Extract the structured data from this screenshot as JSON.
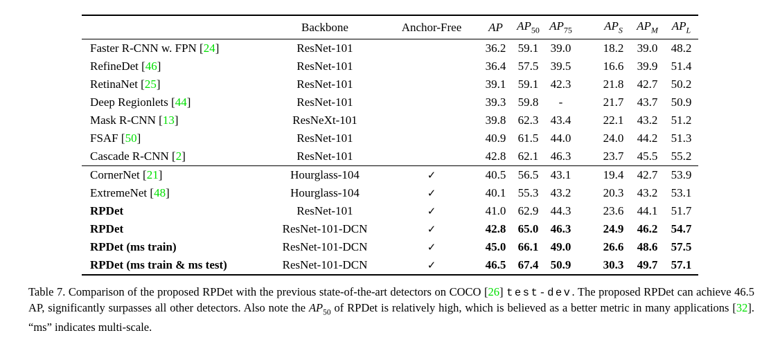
{
  "page": {
    "cite_color": "#00e000",
    "text_color": "#000000",
    "background": "#ffffff"
  },
  "table": {
    "check_glyph": "✓",
    "header": {
      "method": "",
      "backbone": "Backbone",
      "anchor_free": "Anchor-Free",
      "metrics": [
        {
          "name": "AP",
          "sub": ""
        },
        {
          "name": "AP",
          "sub": "50"
        },
        {
          "name": "AP",
          "sub": "75"
        },
        {
          "name": "AP",
          "sub": "S"
        },
        {
          "name": "AP",
          "sub": "M"
        },
        {
          "name": "AP",
          "sub": "L"
        }
      ]
    },
    "groups": [
      {
        "rows": [
          {
            "method": "Faster R-CNN w. FPN",
            "cite": "24",
            "backbone": "ResNet-101",
            "anchor_free": false,
            "bold": false,
            "bold_values": false,
            "values": [
              "36.2",
              "59.1",
              "39.0",
              "18.2",
              "39.0",
              "48.2"
            ]
          },
          {
            "method": "RefineDet",
            "cite": "46",
            "backbone": "ResNet-101",
            "anchor_free": false,
            "bold": false,
            "bold_values": false,
            "values": [
              "36.4",
              "57.5",
              "39.5",
              "16.6",
              "39.9",
              "51.4"
            ]
          },
          {
            "method": "RetinaNet",
            "cite": "25",
            "backbone": "ResNet-101",
            "anchor_free": false,
            "bold": false,
            "bold_values": false,
            "values": [
              "39.1",
              "59.1",
              "42.3",
              "21.8",
              "42.7",
              "50.2"
            ]
          },
          {
            "method": "Deep Regionlets",
            "cite": "44",
            "backbone": "ResNet-101",
            "anchor_free": false,
            "bold": false,
            "bold_values": false,
            "values": [
              "39.3",
              "59.8",
              "-",
              "21.7",
              "43.7",
              "50.9"
            ]
          },
          {
            "method": "Mask R-CNN",
            "cite": "13",
            "backbone": "ResNeXt-101",
            "anchor_free": false,
            "bold": false,
            "bold_values": false,
            "values": [
              "39.8",
              "62.3",
              "43.4",
              "22.1",
              "43.2",
              "51.2"
            ]
          },
          {
            "method": "FSAF",
            "cite": "50",
            "backbone": "ResNet-101",
            "anchor_free": false,
            "bold": false,
            "bold_values": false,
            "values": [
              "40.9",
              "61.5",
              "44.0",
              "24.0",
              "44.2",
              "51.3"
            ]
          },
          {
            "method": "Cascade R-CNN",
            "cite": "2",
            "backbone": "ResNet-101",
            "anchor_free": false,
            "bold": false,
            "bold_values": false,
            "values": [
              "42.8",
              "62.1",
              "46.3",
              "23.7",
              "45.5",
              "55.2"
            ]
          }
        ]
      },
      {
        "rows": [
          {
            "method": "CornerNet",
            "cite": "21",
            "backbone": "Hourglass-104",
            "anchor_free": true,
            "bold": false,
            "bold_values": false,
            "values": [
              "40.5",
              "56.5",
              "43.1",
              "19.4",
              "42.7",
              "53.9"
            ]
          },
          {
            "method": "ExtremeNet",
            "cite": "48",
            "backbone": "Hourglass-104",
            "anchor_free": true,
            "bold": false,
            "bold_values": false,
            "values": [
              "40.1",
              "55.3",
              "43.2",
              "20.3",
              "43.2",
              "53.1"
            ]
          },
          {
            "method": "RPDet",
            "cite": null,
            "backbone": "ResNet-101",
            "anchor_free": true,
            "bold": true,
            "bold_values": false,
            "values": [
              "41.0",
              "62.9",
              "44.3",
              "23.6",
              "44.1",
              "51.7"
            ]
          },
          {
            "method": "RPDet",
            "cite": null,
            "backbone": "ResNet-101-DCN",
            "anchor_free": true,
            "bold": true,
            "bold_values": true,
            "values": [
              "42.8",
              "65.0",
              "46.3",
              "24.9",
              "46.2",
              "54.7"
            ]
          },
          {
            "method": "RPDet (ms train)",
            "cite": null,
            "backbone": "ResNet-101-DCN",
            "anchor_free": true,
            "bold": true,
            "bold_values": true,
            "values": [
              "45.0",
              "66.1",
              "49.0",
              "26.6",
              "48.6",
              "57.5"
            ]
          },
          {
            "method": "RPDet (ms train & ms test)",
            "cite": null,
            "backbone": "ResNet-101-DCN",
            "anchor_free": true,
            "bold": true,
            "bold_values": true,
            "values": [
              "46.5",
              "67.4",
              "50.9",
              "30.3",
              "49.7",
              "57.1"
            ]
          }
        ]
      }
    ]
  },
  "caption": {
    "segments": [
      {
        "t": "Table 7. Comparison of the proposed RPDet with the previous state-of-the-art detectors on COCO [",
        "s": "n"
      },
      {
        "t": "26",
        "s": "cite"
      },
      {
        "t": "] ",
        "s": "n"
      },
      {
        "t": "test-dev",
        "s": "mono"
      },
      {
        "t": ". The proposed RPDet can achieve 46.5 AP, significantly surpasses all other detectors.  Also note the ",
        "s": "n"
      },
      {
        "t": "AP",
        "s": "math"
      },
      {
        "t": "50",
        "s": "mathsub"
      },
      {
        "t": " of RPDet is relatively high, which is believed as a better metric in many applications [",
        "s": "n"
      },
      {
        "t": "32",
        "s": "cite"
      },
      {
        "t": "]. “ms” indicates multi-scale.",
        "s": "n"
      }
    ]
  }
}
